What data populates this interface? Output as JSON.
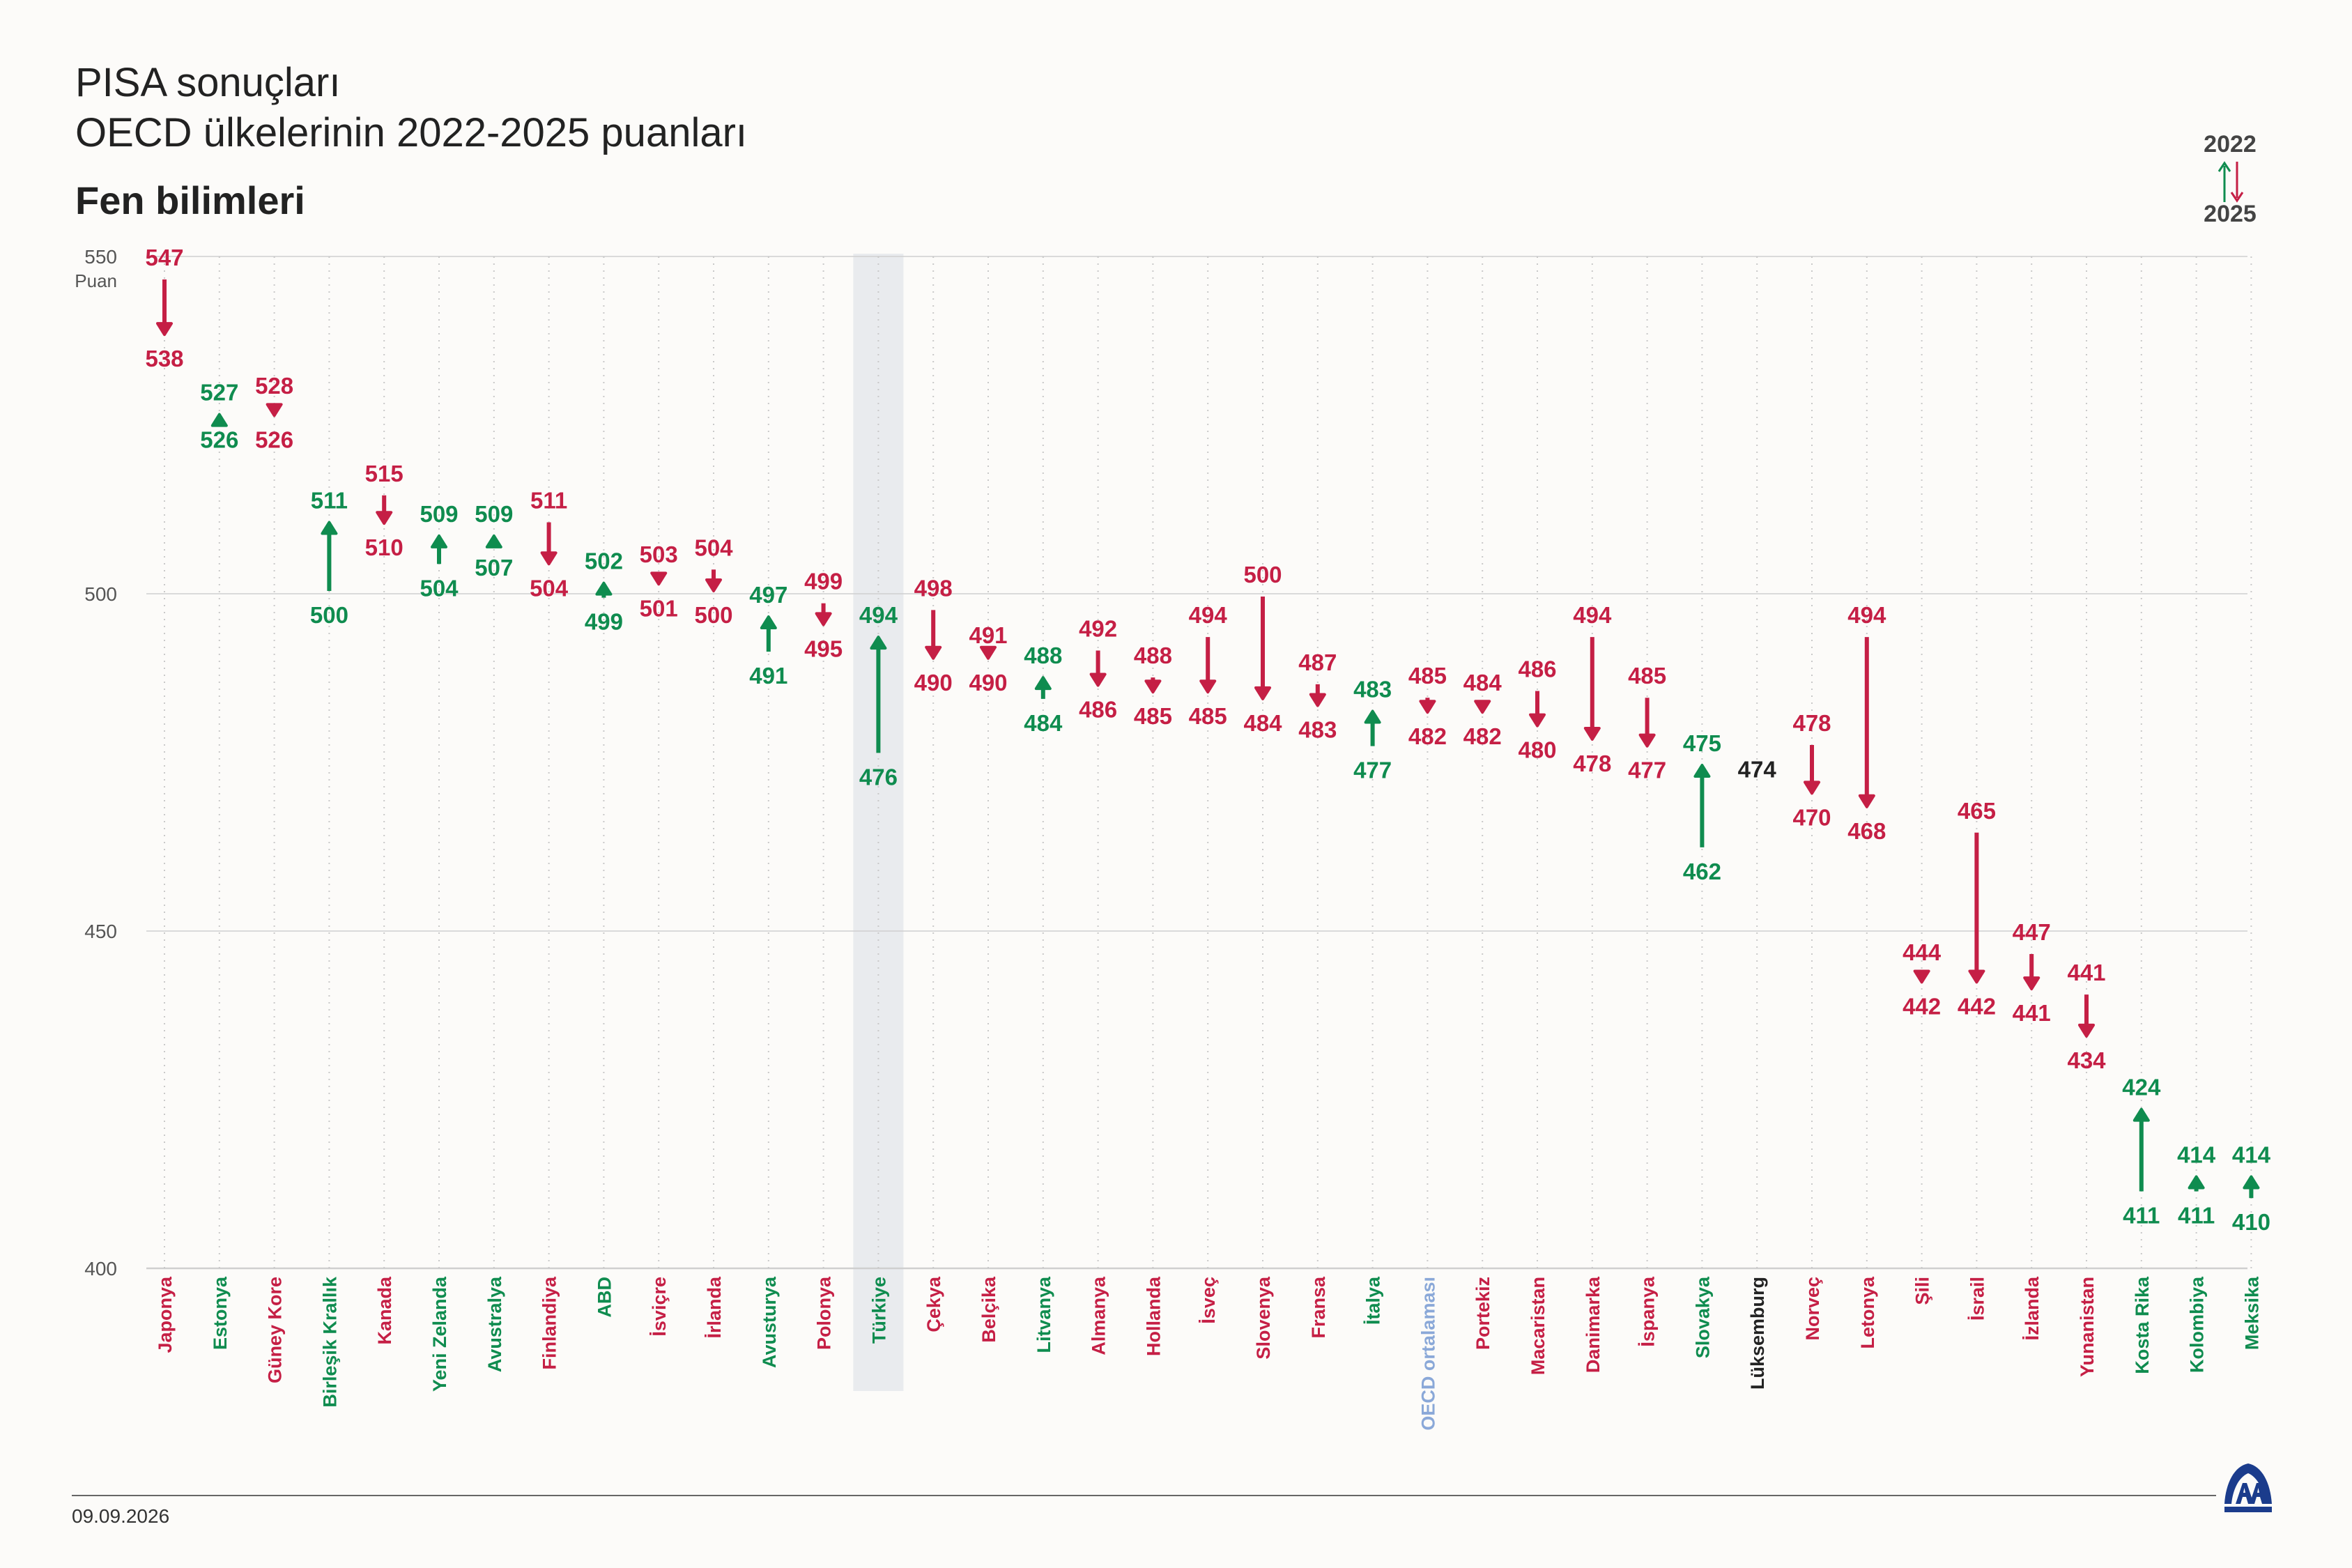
{
  "header": {
    "title_line1": "PISA sonuçları",
    "title_line2": "OECD ülkelerinin 2022-2025 puanları",
    "subtitle": "Fen bilimleri"
  },
  "legend": {
    "year_top": "2022",
    "year_bottom": "2025"
  },
  "footer": {
    "date": "09.09.2026"
  },
  "colors": {
    "increase": "#0f8c4f",
    "decrease": "#c51f45",
    "neutral": "#222222",
    "average": "#8aa8d8",
    "highlight_band": "#e9ebee",
    "grid": "#cfcfcf"
  },
  "chart_data": {
    "type": "arrow-dot-plot",
    "ylabel": "Puan",
    "ylim": [
      400,
      550
    ],
    "yticks": [
      400,
      450,
      500,
      550
    ],
    "grid": true,
    "highlight": "Türkiye",
    "series_names": [
      "2022",
      "2025"
    ],
    "countries": [
      {
        "name": "Japonya",
        "v2022": 547,
        "v2025": 538
      },
      {
        "name": "Estonya",
        "v2022": 526,
        "v2025": 527
      },
      {
        "name": "Güney Kore",
        "v2022": 528,
        "v2025": 526
      },
      {
        "name": "Birleşik Krallık",
        "v2022": 500,
        "v2025": 511
      },
      {
        "name": "Kanada",
        "v2022": 515,
        "v2025": 510
      },
      {
        "name": "Yeni Zelanda",
        "v2022": 504,
        "v2025": 509
      },
      {
        "name": "Avustralya",
        "v2022": 507,
        "v2025": 509
      },
      {
        "name": "Finlandiya",
        "v2022": 511,
        "v2025": 504
      },
      {
        "name": "ABD",
        "v2022": 499,
        "v2025": 502
      },
      {
        "name": "İsviçre",
        "v2022": 503,
        "v2025": 501
      },
      {
        "name": "İrlanda",
        "v2022": 504,
        "v2025": 500
      },
      {
        "name": "Avusturya",
        "v2022": 491,
        "v2025": 497
      },
      {
        "name": "Polonya",
        "v2022": 499,
        "v2025": 495
      },
      {
        "name": "Türkiye",
        "v2022": 476,
        "v2025": 494
      },
      {
        "name": "Çekya",
        "v2022": 498,
        "v2025": 490
      },
      {
        "name": "Belçika",
        "v2022": 491,
        "v2025": 490
      },
      {
        "name": "Litvanya",
        "v2022": 484,
        "v2025": 488
      },
      {
        "name": "Almanya",
        "v2022": 492,
        "v2025": 486
      },
      {
        "name": "Hollanda",
        "v2022": 488,
        "v2025": 485
      },
      {
        "name": "İsveç",
        "v2022": 494,
        "v2025": 485
      },
      {
        "name": "Slovenya",
        "v2022": 500,
        "v2025": 484
      },
      {
        "name": "Fransa",
        "v2022": 487,
        "v2025": 483
      },
      {
        "name": "İtalya",
        "v2022": 477,
        "v2025": 483
      },
      {
        "name": "OECD ortalaması",
        "v2022": 485,
        "v2025": 482
      },
      {
        "name": "Portekiz",
        "v2022": 484,
        "v2025": 482
      },
      {
        "name": "Macaristan",
        "v2022": 486,
        "v2025": 480
      },
      {
        "name": "Danimarka",
        "v2022": 494,
        "v2025": 478
      },
      {
        "name": "İspanya",
        "v2022": 485,
        "v2025": 477
      },
      {
        "name": "Slovakya",
        "v2022": 462,
        "v2025": 475
      },
      {
        "name": "Lüksemburg",
        "v2022": 474,
        "v2025": 474
      },
      {
        "name": "Norveç",
        "v2022": 478,
        "v2025": 470
      },
      {
        "name": "Letonya",
        "v2022": 494,
        "v2025": 468
      },
      {
        "name": "Şili",
        "v2022": 444,
        "v2025": 442
      },
      {
        "name": "İsrail",
        "v2022": 465,
        "v2025": 442
      },
      {
        "name": "İzlanda",
        "v2022": 447,
        "v2025": 441
      },
      {
        "name": "Yunanistan",
        "v2022": 441,
        "v2025": 434
      },
      {
        "name": "Kosta Rika",
        "v2022": 411,
        "v2025": 424
      },
      {
        "name": "Kolombiya",
        "v2022": 411,
        "v2025": 414
      },
      {
        "name": "Meksika",
        "v2022": 410,
        "v2025": 414
      }
    ]
  }
}
